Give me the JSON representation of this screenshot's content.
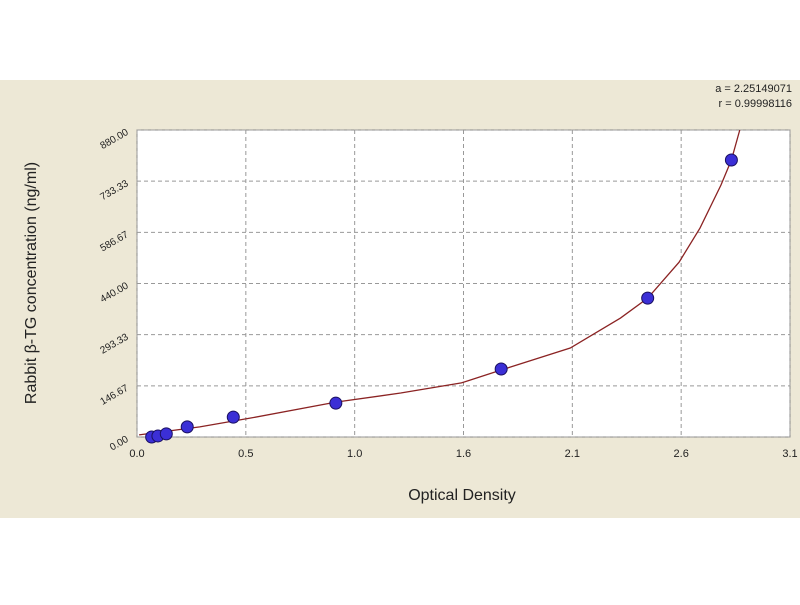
{
  "chart_data": {
    "type": "scatter",
    "x_label": "Optical Density",
    "y_label": "Rabbit β-TG concentration (ng/ml)",
    "annotations": [
      "a = 2.25149071",
      "r = 0.99998116"
    ],
    "x": [
      0.07,
      0.1,
      0.14,
      0.24,
      0.46,
      0.95,
      1.74,
      2.44,
      2.84
    ],
    "values": [
      0,
      3,
      9,
      29,
      57,
      97,
      195,
      398,
      794
    ],
    "color": "#3b2fd6",
    "curve": {
      "color": "#8b2323",
      "x": [
        0.01,
        0.3,
        0.54,
        0.95,
        1.26,
        1.55,
        1.74,
        2.07,
        2.31,
        2.44,
        2.59,
        2.69,
        2.79,
        2.84,
        2.88
      ],
      "values": [
        6,
        29,
        54,
        100,
        126,
        155,
        192,
        255,
        341,
        398,
        501,
        599,
        722,
        794,
        880
      ]
    },
    "xlim": [
      0,
      3.12
    ],
    "xticks": [
      {
        "value": 0,
        "label": "0.0"
      },
      {
        "value": 0.52,
        "label": "0.5"
      },
      {
        "value": 1.04,
        "label": "1.0"
      },
      {
        "value": 1.56,
        "label": "1.6"
      },
      {
        "value": 2.08,
        "label": "2.1"
      },
      {
        "value": 2.6,
        "label": "2.6"
      },
      {
        "value": 3.12,
        "label": "3.1"
      }
    ],
    "ylim": [
      0,
      880
    ],
    "yticks": [
      {
        "value": 0,
        "label": "0.00"
      },
      146.67,
      293.33,
      {
        "value": 440,
        "label": "440.00"
      },
      586.67,
      733.33,
      {
        "value": 880,
        "label": "880.00"
      }
    ],
    "grid": true
  }
}
